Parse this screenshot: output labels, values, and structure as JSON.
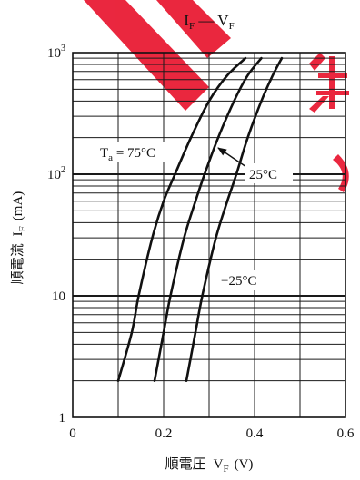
{
  "colors": {
    "curve": "#111111",
    "grid": "#1a1a1a",
    "watermark": "#e8102a",
    "background": "#ffffff"
  },
  "chart_data": {
    "type": "line",
    "title": {
      "main1": "I",
      "sub1": "F",
      "sep": " — ",
      "main2": "V",
      "sub2": "F"
    },
    "xlabel": {
      "prefix": "順電圧",
      "var": "V",
      "sub": "F",
      "unit": "(V)"
    },
    "ylabel": {
      "prefix": "順電流",
      "var": "I",
      "sub": "F",
      "unit": "(mA)"
    },
    "xlim": [
      0,
      0.6
    ],
    "ylim": [
      1,
      1000
    ],
    "yscale": "log",
    "grid": true,
    "x_grid_step": 0.1,
    "x_ticks": [
      {
        "value": 0,
        "label": "0"
      },
      {
        "value": 0.2,
        "label": "0.2"
      },
      {
        "value": 0.4,
        "label": "0.4"
      },
      {
        "value": 0.6,
        "label": "0.6"
      }
    ],
    "y_ticks": [
      {
        "value": 1,
        "label": "1"
      },
      {
        "value": 10,
        "label": "10"
      },
      {
        "value": 100,
        "label": "10",
        "exp": "2"
      },
      {
        "value": 1000,
        "label": "10",
        "exp": "3"
      }
    ],
    "series": [
      {
        "label_main": "T",
        "label_sub": "a",
        "label_text": " = 75°C",
        "x": [
          0.1,
          0.13,
          0.145,
          0.175,
          0.2,
          0.225,
          0.26,
          0.3,
          0.34,
          0.38
        ],
        "y": [
          2,
          5,
          10,
          30,
          60,
          100,
          200,
          400,
          650,
          900
        ]
      },
      {
        "label_text": "25°C",
        "x": [
          0.18,
          0.2,
          0.215,
          0.245,
          0.27,
          0.29,
          0.32,
          0.355,
          0.385,
          0.415
        ],
        "y": [
          2,
          5,
          10,
          30,
          60,
          100,
          200,
          400,
          650,
          900
        ]
      },
      {
        "label_text": "−25°C",
        "x": [
          0.25,
          0.27,
          0.285,
          0.315,
          0.34,
          0.36,
          0.385,
          0.415,
          0.44,
          0.46
        ],
        "y": [
          2,
          5,
          10,
          30,
          60,
          100,
          200,
          400,
          650,
          900
        ]
      }
    ]
  }
}
